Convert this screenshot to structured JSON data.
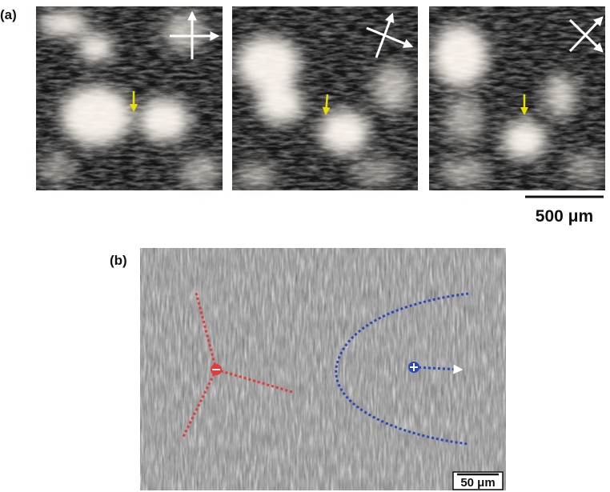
{
  "panel_a": {
    "label": "(a)",
    "scale_bar": "500 μm"
  },
  "panel_b": {
    "label": "(b)",
    "scale_bar": "50 μm"
  }
}
